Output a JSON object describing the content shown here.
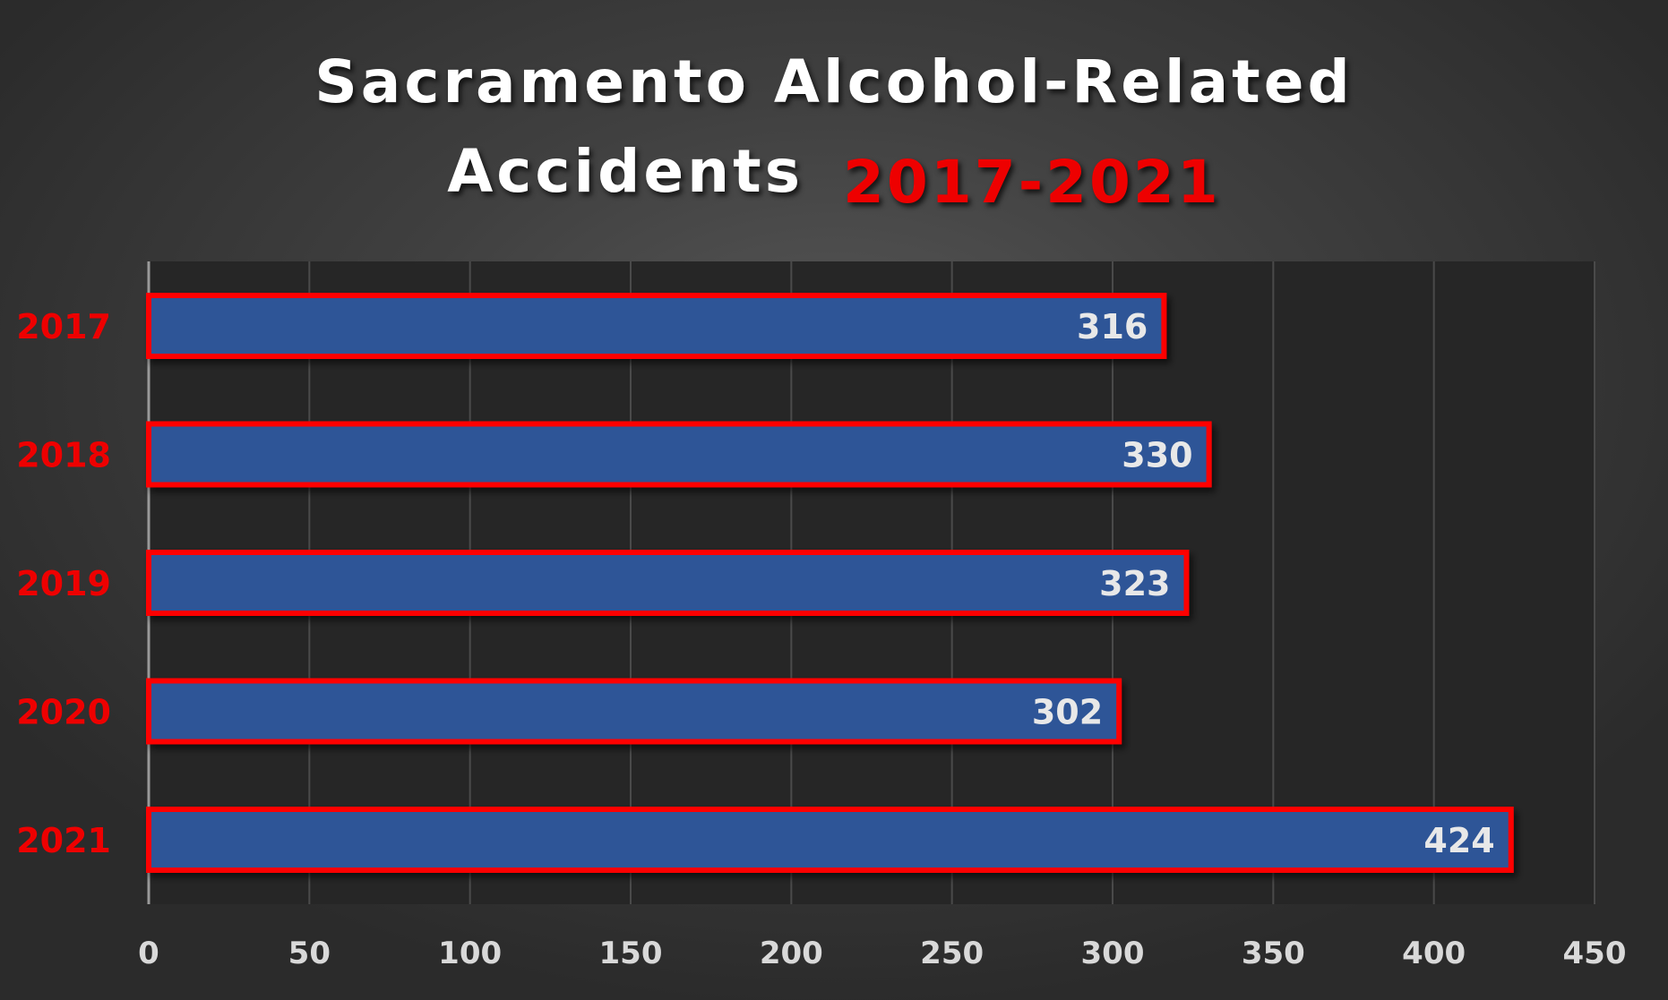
{
  "title": {
    "line1": "Sacramento Alcohol-Related",
    "line2": "Accidents",
    "year_range": "2017-2021"
  },
  "colors": {
    "bar_fill": "#2f5597",
    "bar_border": "#ff0000",
    "category_label": "#ee0000",
    "title_text": "#ffffff",
    "plot_background": "#262626",
    "gridline": "#4a4a4a"
  },
  "chart_data": {
    "type": "bar",
    "orientation": "horizontal",
    "title": "Sacramento Alcohol-Related Accidents 2017-2021",
    "categories": [
      "2017",
      "2018",
      "2019",
      "2020",
      "2021"
    ],
    "values": [
      316,
      330,
      323,
      302,
      424
    ],
    "xlabel": "",
    "ylabel": "",
    "xlim": [
      0,
      450
    ],
    "xticks": [
      0,
      50,
      100,
      150,
      200,
      250,
      300,
      350,
      400,
      450
    ],
    "grid": true,
    "legend": "none",
    "data_labels": true
  }
}
